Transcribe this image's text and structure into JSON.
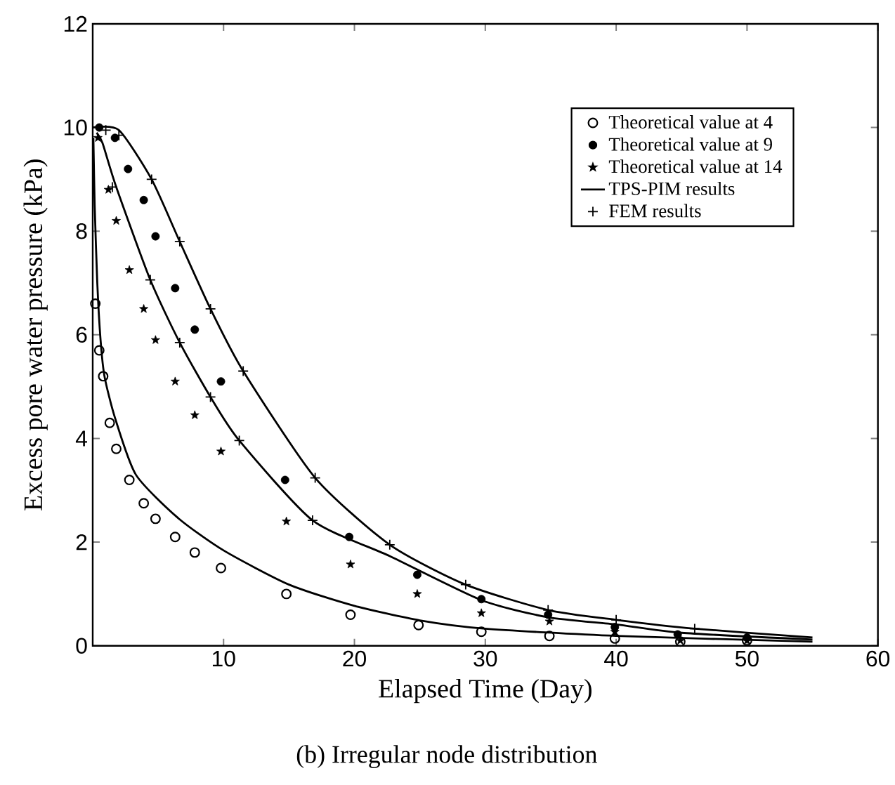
{
  "chart_data": {
    "type": "scatter",
    "xlabel": "Elapsed Time (Day)",
    "ylabel": "Excess pore water pressure (kPa)",
    "annotations": [
      "(b) Irregular node distribution"
    ],
    "xlim": [
      0,
      60
    ],
    "ylim": [
      0,
      12
    ],
    "xticks": [
      {
        "value": 0,
        "label": null
      },
      10,
      20,
      30,
      40,
      50,
      60
    ],
    "yticks": [
      0,
      2,
      4,
      6,
      8,
      10,
      12
    ],
    "legend": "top right",
    "grid": false,
    "series": [
      {
        "name": "Theoretical value at 4",
        "marker": "circle",
        "color": "#000000",
        "x": [
          0.2,
          0.5,
          0.8,
          1.3,
          1.8,
          2.8,
          3.9,
          4.8,
          6.3,
          7.8,
          9.8,
          14.8,
          19.7,
          24.9,
          29.7,
          34.9,
          39.9,
          44.9,
          50
        ],
        "values": [
          6.6,
          5.7,
          5.2,
          4.3,
          3.8,
          3.2,
          2.75,
          2.45,
          2.1,
          1.8,
          1.5,
          1.0,
          0.6,
          0.4,
          0.27,
          0.19,
          0.14,
          0.08,
          0.1
        ]
      },
      {
        "name": "Theoretical value at 9",
        "marker": "dot",
        "color": "#000000",
        "x": [
          0.5,
          1.7,
          2.7,
          3.9,
          4.8,
          6.3,
          7.8,
          9.8,
          14.7,
          19.6,
          24.8,
          29.7,
          34.8,
          39.9,
          44.7,
          50
        ],
        "values": [
          10.0,
          9.8,
          9.2,
          8.6,
          7.9,
          6.9,
          6.1,
          5.1,
          3.2,
          2.1,
          1.37,
          0.9,
          0.6,
          0.36,
          0.22,
          0.16
        ]
      },
      {
        "name": "Theoretical value at 14",
        "marker": "star",
        "color": "#000000",
        "x": [
          0.4,
          1.2,
          1.8,
          2.8,
          3.9,
          4.8,
          6.3,
          7.8,
          9.8,
          14.8,
          19.7,
          24.8,
          29.7,
          34.9,
          39.9,
          44.9,
          50
        ],
        "values": [
          9.8,
          8.8,
          8.2,
          7.25,
          6.5,
          5.9,
          5.1,
          4.45,
          3.75,
          2.4,
          1.57,
          1.0,
          0.63,
          0.47,
          0.27,
          0.1,
          0.1
        ]
      },
      {
        "name": "TPS-PIM results",
        "type": "line",
        "marker": "none",
        "line_style": "solid",
        "color": "#000000",
        "x": [
          0.05,
          0.15,
          0.35,
          0.6,
          0.9,
          1.7,
          3.3,
          6.5,
          10,
          15,
          20,
          25,
          30,
          40,
          55
        ],
        "values": [
          9.8,
          8.5,
          7.0,
          5.9,
          5.2,
          4.4,
          3.3,
          2.47,
          1.84,
          1.18,
          0.77,
          0.49,
          0.33,
          0.19,
          0.08
        ]
      },
      {
        "type": "line",
        "marker": "none",
        "line_style": "solid",
        "color": "#000000",
        "x": [
          0.3,
          0.75,
          1.8,
          4.4,
          6.65,
          9,
          11.2,
          16.8,
          22.7,
          29.7,
          34.8,
          40,
          45,
          55
        ],
        "values": [
          9.9,
          9.7,
          8.85,
          7.06,
          5.85,
          4.8,
          3.96,
          2.42,
          1.73,
          0.88,
          0.55,
          0.41,
          0.25,
          0.12
        ]
      },
      {
        "type": "line",
        "marker": "none",
        "line_style": "solid",
        "color": "#000000",
        "x": [
          0,
          2,
          4.5,
          6.65,
          9,
          11.5,
          17,
          22.7,
          28.5,
          34.8,
          40,
          46,
          55
        ],
        "values": [
          10,
          9.95,
          9.0,
          7.8,
          6.5,
          5.3,
          3.24,
          1.95,
          1.18,
          0.69,
          0.5,
          0.33,
          0.16
        ]
      },
      {
        "name": "FEM results",
        "marker": "cross",
        "color": "#000000",
        "x": [
          1,
          2,
          4.5,
          6.65,
          9,
          11.5,
          17,
          22.7,
          28.5,
          34.8,
          40,
          46,
          1.5,
          4.4,
          6.65,
          9,
          11.2,
          16.8
        ],
        "values": [
          9.95,
          9.85,
          9.0,
          7.8,
          6.5,
          5.3,
          3.24,
          1.95,
          1.18,
          0.69,
          0.5,
          0.33,
          8.85,
          7.06,
          5.85,
          4.8,
          3.96,
          2.42
        ]
      }
    ]
  }
}
